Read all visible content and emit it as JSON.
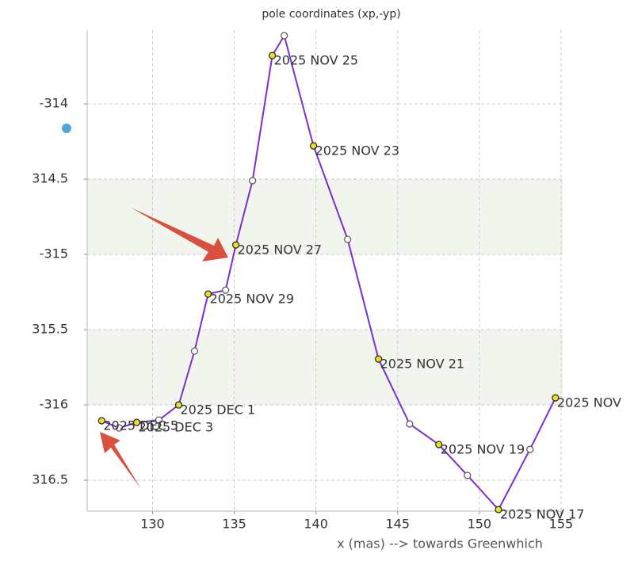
{
  "chart_data": {
    "type": "line",
    "title": "pole coordinates (xp,-yp)",
    "xlabel": "x (mas) --> towards Greenwhich",
    "xlim": [
      126.0,
      155.1
    ],
    "xticks": [
      130,
      135,
      140,
      145,
      150,
      155
    ],
    "ylim": [
      -316.705,
      -313.51
    ],
    "yticks": [
      -314,
      {
        "value": -314.5,
        "label": "314.5"
      },
      -315,
      {
        "value": -315.5,
        "label": "315.5"
      },
      -316,
      {
        "value": -316.5,
        "label": "316.5"
      }
    ],
    "grid": true,
    "alternate_bands": true,
    "band_color": "#f2f5ee",
    "series": [
      {
        "color": "#7a2fd2",
        "x": [
          154.66,
          153.1,
          151.17,
          149.27,
          147.52,
          145.73,
          143.83,
          141.94,
          139.85,
          138.06,
          137.33,
          136.12,
          135.1,
          134.47,
          133.4,
          132.57,
          131.6,
          130.39,
          129.03,
          127.96,
          126.89
        ],
        "values": [
          -315.953,
          -316.295,
          -316.695,
          -316.468,
          -316.263,
          -316.126,
          -315.695,
          -314.9,
          -314.279,
          -313.547,
          -313.679,
          -314.51,
          -314.937,
          -315.237,
          -315.263,
          -315.642,
          -316.0,
          -316.1,
          -316.116,
          -316.153,
          -316.105
        ],
        "labels": [
          "2025 NOV",
          null,
          "2025 NOV 17",
          null,
          "2025 NOV 19",
          null,
          "2025 NOV 21",
          null,
          "2025 NOV 23",
          null,
          "2025 NOV 25",
          null,
          "2025 NOV 27",
          null,
          "2025 NOV 29",
          null,
          "2025 DEC 1",
          null,
          "2025 DEC 3",
          null,
          "2025 DEC 5"
        ]
      }
    ]
  }
}
